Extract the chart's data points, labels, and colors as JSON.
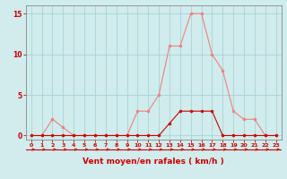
{
  "x": [
    0,
    1,
    2,
    3,
    4,
    5,
    6,
    7,
    8,
    9,
    10,
    11,
    12,
    13,
    14,
    15,
    16,
    17,
    18,
    19,
    20,
    21,
    22,
    23
  ],
  "rafales": [
    0,
    0,
    2,
    1,
    0,
    0,
    0,
    0,
    0,
    0,
    3,
    3,
    5,
    11,
    11,
    15,
    15,
    10,
    8,
    3,
    2,
    2,
    0,
    0
  ],
  "moyen": [
    0,
    0,
    0,
    0,
    0,
    0,
    0,
    0,
    0,
    0,
    0,
    0,
    0,
    1.5,
    3,
    3,
    3,
    3,
    0,
    0,
    0,
    0,
    0,
    0
  ],
  "color_rafales": "#f08080",
  "color_moyen": "#cc0000",
  "bg_color": "#d0ecec",
  "grid_color": "#a8d4d4",
  "axis_color": "#cc0000",
  "xlabel": "Vent moyen/en rafales ( km/h )",
  "xlabel_fontsize": 6.5,
  "yticks": [
    0,
    5,
    10,
    15
  ],
  "ylim": [
    -0.5,
    16
  ],
  "xlim": [
    -0.5,
    23.5
  ],
  "marker": "o",
  "marker_size": 2,
  "line_width": 0.8
}
